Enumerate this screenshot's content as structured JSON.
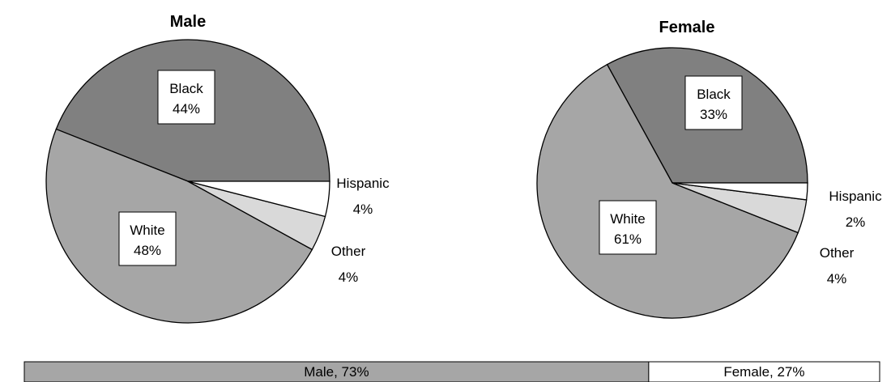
{
  "chart_data": [
    {
      "type": "pie",
      "title": "Male",
      "slices": [
        {
          "name": "Black",
          "value": 44,
          "label": "44%",
          "color": "#808080"
        },
        {
          "name": "Hispanic",
          "value": 4,
          "label": "4%",
          "color": "#ffffff"
        },
        {
          "name": "Other",
          "value": 4,
          "label": "4%",
          "color": "#d9d9d9"
        },
        {
          "name": "White",
          "value": 48,
          "label": "48%",
          "color": "#a6a6a6"
        }
      ]
    },
    {
      "type": "pie",
      "title": "Female",
      "slices": [
        {
          "name": "Black",
          "value": 33,
          "label": "33%",
          "color": "#808080"
        },
        {
          "name": "Hispanic",
          "value": 2,
          "label": "2%",
          "color": "#ffffff"
        },
        {
          "name": "Other",
          "value": 4,
          "label": "4%",
          "color": "#d9d9d9"
        },
        {
          "name": "White",
          "value": 61,
          "label": "61%",
          "color": "#a6a6a6"
        }
      ]
    },
    {
      "type": "bar",
      "orientation": "horizontal-stacked",
      "segments": [
        {
          "name": "Male",
          "value": 73,
          "label": "Male, 73%",
          "color": "#a6a6a6"
        },
        {
          "name": "Female",
          "value": 27,
          "label": "Female, 27%",
          "color": "#ffffff"
        }
      ]
    }
  ]
}
